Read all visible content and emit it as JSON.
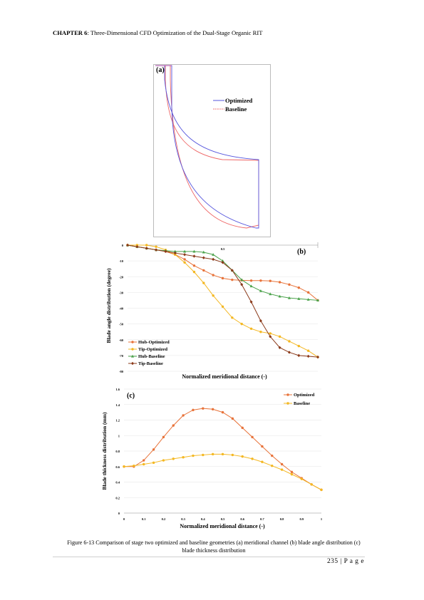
{
  "header": {
    "chapter": "CHAPTER 6",
    "title": ": Three-Dimensional CFD Optimization of the Dual-Stage Organic RIT"
  },
  "figure_a": {
    "panel_label": "(a)",
    "legend": [
      {
        "name": "Optimized",
        "color": "#5555dd"
      },
      {
        "name": "Baseline",
        "color": "#ee6666"
      }
    ]
  },
  "chart_data": [
    {
      "type": "line",
      "panel": "(b)",
      "xlabel": "Normalized meridional distance (-)",
      "ylabel": "Blade angle distribution (degree)",
      "xlim": [
        0,
        1
      ],
      "ylim": [
        -80,
        0
      ],
      "xticks": [
        "0.5"
      ],
      "yticks": [
        "0",
        "-10",
        "-20",
        "-30",
        "-40",
        "-50",
        "-60",
        "-70",
        "-80"
      ],
      "legend_position": "bottom-left",
      "x": [
        0,
        0.05,
        0.1,
        0.15,
        0.2,
        0.25,
        0.3,
        0.35,
        0.4,
        0.45,
        0.5,
        0.55,
        0.6,
        0.65,
        0.7,
        0.75,
        0.8,
        0.85,
        0.9,
        0.95,
        1
      ],
      "series": [
        {
          "name": "Hub-Optimized",
          "color": "#e8733a",
          "marker": "circle",
          "values": [
            0,
            -1,
            -2,
            -3,
            -4,
            -6,
            -9,
            -13,
            -16,
            -19,
            -21,
            -22,
            -22.3,
            -22.5,
            -22.5,
            -22.7,
            -23.5,
            -25,
            -27,
            -30,
            -35
          ]
        },
        {
          "name": "Tip-Optimized",
          "color": "#f4b823",
          "marker": "circle",
          "values": [
            0,
            0,
            0,
            -1,
            -3,
            -6,
            -11,
            -17,
            -24,
            -32,
            -39,
            -46,
            -50,
            -53,
            -55,
            -56,
            -58,
            -61,
            -64,
            -67,
            -71
          ]
        },
        {
          "name": "Hub-Baseline",
          "color": "#4aa24a",
          "marker": "triangle",
          "values": [
            0,
            -1,
            -2,
            -3,
            -3.5,
            -4,
            -4,
            -4,
            -4.5,
            -6,
            -10,
            -16,
            -22,
            -26,
            -29,
            -31,
            -32.5,
            -33.5,
            -34,
            -34.5,
            -35
          ]
        },
        {
          "name": "Tip-Baseline",
          "color": "#8b3a1a",
          "marker": "diamond",
          "values": [
            0,
            -1,
            -2,
            -3,
            -4,
            -5,
            -6,
            -7,
            -8,
            -9,
            -11,
            -16,
            -25,
            -36,
            -48,
            -58,
            -65,
            -68,
            -70,
            -70.5,
            -71
          ]
        }
      ]
    },
    {
      "type": "line",
      "panel": "(c)",
      "xlabel": "Normalized meridional distance (-)",
      "ylabel": "Blade thickness distribution (mm)",
      "xlim": [
        0,
        1
      ],
      "ylim": [
        0,
        1.6
      ],
      "xticks": [
        "0",
        "0.1",
        "0.2",
        "0.3",
        "0.4",
        "0.5",
        "0.6",
        "0.7",
        "0.8",
        "0.9",
        "1"
      ],
      "yticks": [
        "0",
        "0.2",
        "0.4",
        "0.6",
        "0.8",
        "1",
        "1.2",
        "1.4",
        "1.6"
      ],
      "legend_position": "top-right",
      "x": [
        0,
        0.05,
        0.1,
        0.15,
        0.2,
        0.25,
        0.3,
        0.35,
        0.4,
        0.45,
        0.5,
        0.55,
        0.6,
        0.65,
        0.7,
        0.75,
        0.8,
        0.85,
        0.9,
        0.95,
        1
      ],
      "series": [
        {
          "name": "Optimized",
          "color": "#e8733a",
          "marker": "circle",
          "values": [
            0.6,
            0.6,
            0.68,
            0.82,
            0.98,
            1.13,
            1.26,
            1.33,
            1.35,
            1.34,
            1.3,
            1.22,
            1.1,
            0.98,
            0.86,
            0.74,
            0.63,
            0.53,
            0.45,
            0.37,
            0.3
          ]
        },
        {
          "name": "Baseline",
          "color": "#f4b823",
          "marker": "circle",
          "values": [
            0.6,
            0.61,
            0.63,
            0.65,
            0.68,
            0.7,
            0.72,
            0.74,
            0.75,
            0.76,
            0.76,
            0.75,
            0.73,
            0.7,
            0.66,
            0.61,
            0.56,
            0.5,
            0.44,
            0.37,
            0.3
          ]
        }
      ]
    }
  ],
  "caption": "Figure 6-13 Comparison of stage two optimized and baseline geometries (a) meridional channel (b) blade angle distribution (c) blade thickness distribution",
  "page_number": "235 | P a g e"
}
